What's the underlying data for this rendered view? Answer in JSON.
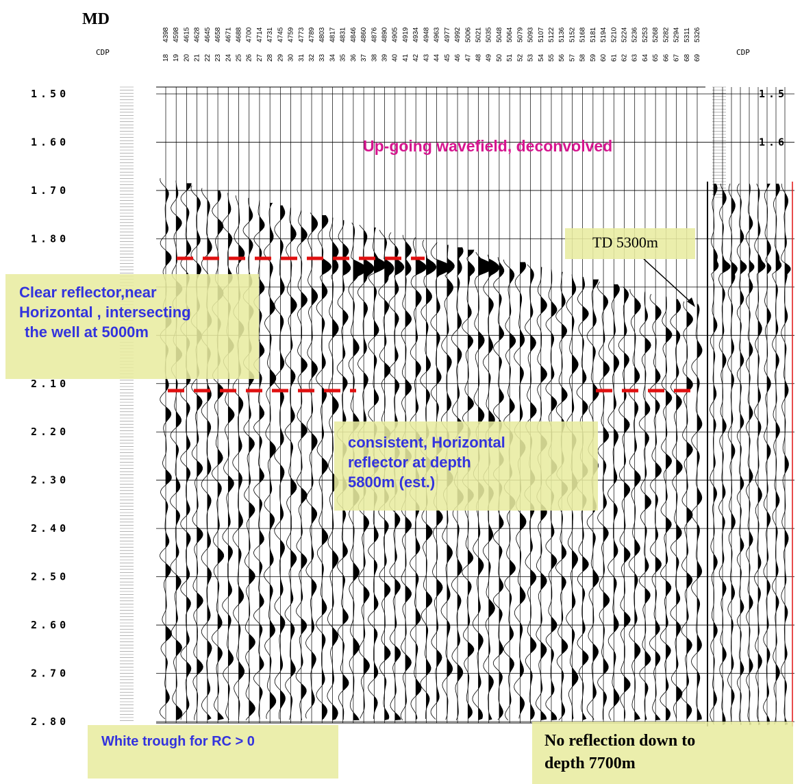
{
  "header": {
    "md_label": "MD",
    "cdp_label": "CDP",
    "cdp_label_right": "CDP"
  },
  "md_values": [
    4398,
    4598,
    4615,
    4628,
    4645,
    4658,
    4671,
    4688,
    4700,
    4714,
    4731,
    4745,
    4759,
    4773,
    4789,
    4803,
    4817,
    4831,
    4846,
    4860,
    4876,
    4890,
    4905,
    4919,
    4934,
    4948,
    4963,
    4977,
    4992,
    5006,
    5021,
    5035,
    5048,
    5064,
    5079,
    5093,
    5107,
    5122,
    5136,
    5152,
    5168,
    5181,
    5194,
    5210,
    5224,
    5236,
    5253,
    5268,
    5282,
    5294,
    5311,
    5326
  ],
  "cdp_values": [
    18,
    19,
    20,
    21,
    22,
    23,
    24,
    25,
    26,
    27,
    28,
    29,
    30,
    31,
    32,
    33,
    34,
    35,
    36,
    37,
    38,
    39,
    40,
    41,
    42,
    43,
    44,
    45,
    46,
    47,
    48,
    49,
    50,
    51,
    52,
    53,
    54,
    55,
    56,
    57,
    58,
    59,
    60,
    61,
    62,
    63,
    64,
    65,
    66,
    67,
    68,
    69
  ],
  "time_axis_left": [
    "1.50",
    "1.60",
    "1.70",
    "1.80",
    "2.10",
    "2.20",
    "2.30",
    "2.40",
    "2.50",
    "2.60",
    "2.70",
    "2.80"
  ],
  "time_axis_right": [
    "1.5",
    "1.6"
  ],
  "annotations": {
    "title": "Up-going wavefield, deconvolved",
    "clear_reflector": [
      "Clear reflector,near",
      "Horizontal , intersecting",
      "the well at 5000m"
    ],
    "td": "TD 5300m",
    "consistent_reflector": [
      "consistent, Horizontal",
      "reflector at depth",
      "5800m (est.)"
    ],
    "white_trough": "White trough for RC > 0",
    "no_reflection": [
      "No reflection down to",
      "depth 7700m"
    ]
  }
}
